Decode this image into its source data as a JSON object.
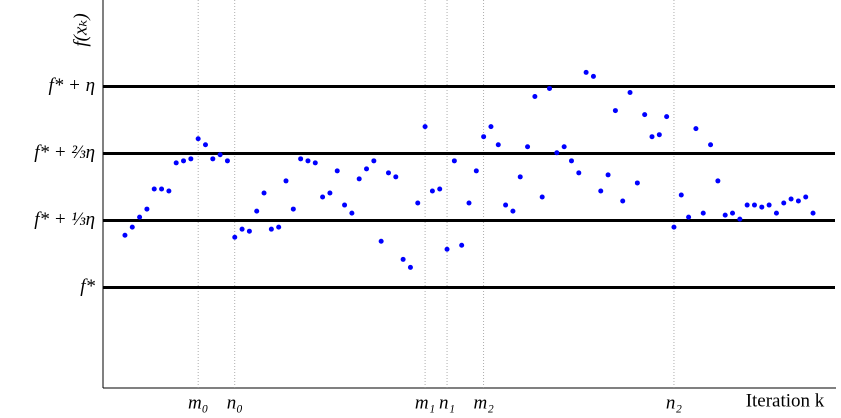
{
  "chart_data": {
    "type": "scatter",
    "xlabel": "Iteration k",
    "ylabel": "f(xₖ)",
    "color": "#0000ff",
    "xlim": [
      -2,
      98
    ],
    "ylim": [
      -0.5,
      1.42
    ],
    "xticks": [
      {
        "value": 11,
        "label": "m₀"
      },
      {
        "value": 16,
        "label": "n₀"
      },
      {
        "value": 42,
        "label": "m₁"
      },
      {
        "value": 45,
        "label": "n₁"
      },
      {
        "value": 50,
        "label": "m₂"
      },
      {
        "value": 76,
        "label": "n₂"
      }
    ],
    "yticks": [
      {
        "value": 0,
        "label": "f*"
      },
      {
        "value": 0.3333,
        "label": "f* + ⅓η"
      },
      {
        "value": 0.6667,
        "label": "f* + ⅔η"
      },
      {
        "value": 1,
        "label": "f* + η"
      }
    ],
    "x": [
      1,
      2,
      3,
      4,
      5,
      6,
      7,
      8,
      9,
      10,
      11,
      12,
      13,
      14,
      15,
      16,
      17,
      18,
      19,
      20,
      21,
      22,
      23,
      24,
      25,
      26,
      27,
      28,
      29,
      30,
      31,
      32,
      33,
      34,
      35,
      36,
      37,
      38,
      39,
      40,
      41,
      42,
      43,
      44,
      45,
      46,
      47,
      48,
      49,
      50,
      51,
      52,
      53,
      54,
      55,
      56,
      57,
      58,
      59,
      60,
      61,
      62,
      63,
      64,
      65,
      66,
      67,
      68,
      69,
      70,
      71,
      72,
      73,
      74,
      75,
      76,
      77,
      78,
      79,
      80,
      81,
      82,
      83,
      84,
      85,
      86,
      87,
      88,
      89,
      90,
      91,
      92,
      93,
      94,
      95
    ],
    "values": [
      0.26,
      0.3,
      0.35,
      0.39,
      0.49,
      0.49,
      0.48,
      0.62,
      0.63,
      0.64,
      0.74,
      0.71,
      0.64,
      0.66,
      0.63,
      0.25,
      0.29,
      0.28,
      0.38,
      0.47,
      0.29,
      0.3,
      0.53,
      0.39,
      0.64,
      0.63,
      0.62,
      0.45,
      0.47,
      0.58,
      0.41,
      0.37,
      0.54,
      0.59,
      0.63,
      0.23,
      0.57,
      0.55,
      0.14,
      0.1,
      0.42,
      0.8,
      0.48,
      0.49,
      0.19,
      0.63,
      0.21,
      0.42,
      0.58,
      0.75,
      0.8,
      0.71,
      0.41,
      0.38,
      0.55,
      0.7,
      0.95,
      0.45,
      0.99,
      0.67,
      0.7,
      0.63,
      0.57,
      1.07,
      1.05,
      0.48,
      0.56,
      0.88,
      0.43,
      0.97,
      0.52,
      0.86,
      0.75,
      0.76,
      0.85,
      0.3,
      0.46,
      0.35,
      0.79,
      0.37,
      0.71,
      0.53,
      0.36,
      0.37,
      0.34,
      0.41,
      0.41,
      0.4,
      0.41,
      0.37,
      0.42,
      0.44,
      0.43,
      0.45,
      0.37
    ]
  }
}
